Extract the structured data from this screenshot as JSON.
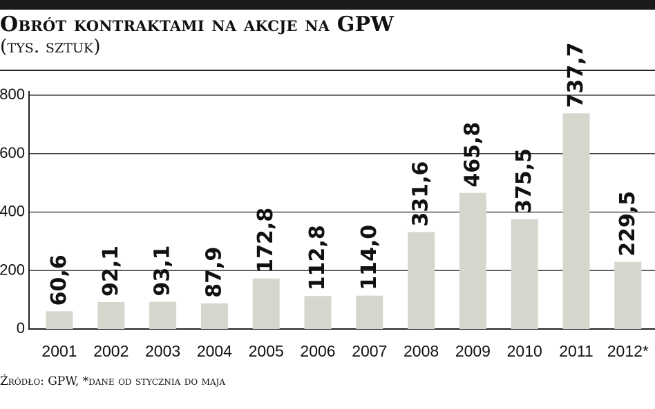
{
  "title": "Obrót kontraktami na akcje na GPW",
  "subtitle": "(tys. sztuk)",
  "source": "Źródło: GPW, *dane od stycznia do maja",
  "colors": {
    "bar": "#d6d6cc",
    "text": "#111111",
    "axis": "#222222",
    "top_bar": "#1a1a1a"
  },
  "chart_data": {
    "type": "bar",
    "title": "Obrót kontraktami na akcje na GPW",
    "subtitle": "(tys. sztuk)",
    "categories": [
      "2001",
      "2002",
      "2003",
      "2004",
      "2005",
      "2006",
      "2007",
      "2008",
      "2009",
      "2010",
      "2011",
      "2012*"
    ],
    "values": [
      60.6,
      92.1,
      93.1,
      87.9,
      172.8,
      112.8,
      114.0,
      331.6,
      465.8,
      375.5,
      737.7,
      229.5
    ],
    "value_labels": [
      "60,6",
      "92,1",
      "93,1",
      "87,9",
      "172,8",
      "112,8",
      "114,0",
      "331,6",
      "465,8",
      "375,5",
      "737,7",
      "229,5"
    ],
    "yticks": [
      0,
      200,
      400,
      600,
      800
    ],
    "ytick_labels": [
      "0",
      "200",
      "400",
      "600",
      "800"
    ],
    "ylim": [
      0,
      800
    ],
    "xlabel": "",
    "ylabel": "",
    "grid": "horizontal",
    "legend": "none"
  }
}
